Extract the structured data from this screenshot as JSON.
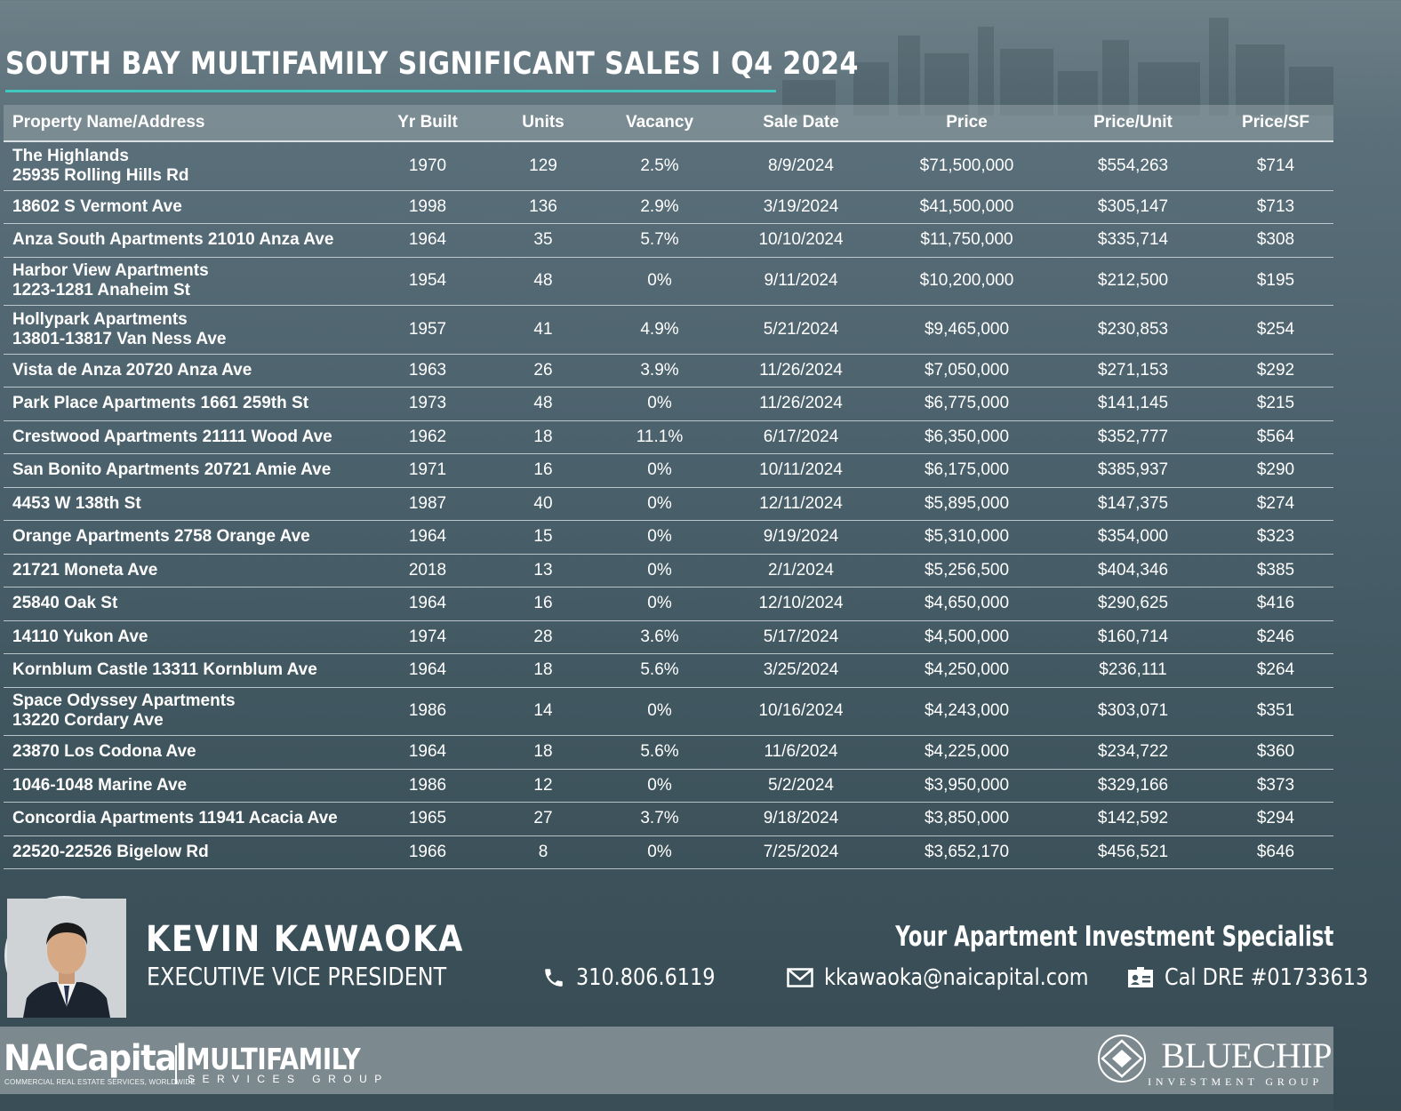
{
  "title": "SOUTH BAY MULTIFAMILY SIGNIFICANT SALES I Q4 2024",
  "table": {
    "columns": {
      "name": "Property Name/Address",
      "yr_built": "Yr Built",
      "units": "Units",
      "vacancy": "Vacancy",
      "sale_date": "Sale Date",
      "price": "Price",
      "price_unit": "Price/Unit",
      "price_sf": "Price/SF"
    },
    "rows": [
      {
        "name1": "The Highlands",
        "name2": "25935 Rolling Hills Rd",
        "yr": "1970",
        "units": "129",
        "vac": "2.5%",
        "date": "8/9/2024",
        "price": "$71,500,000",
        "ppu": "$554,263",
        "psf": "$714"
      },
      {
        "name1": "18602 S Vermont Ave",
        "yr": "1998",
        "units": "136",
        "vac": "2.9%",
        "date": "3/19/2024",
        "price": "$41,500,000",
        "ppu": "$305,147",
        "psf": "$713"
      },
      {
        "name1": "Anza South Apartments 21010 Anza Ave",
        "yr": "1964",
        "units": "35",
        "vac": "5.7%",
        "date": "10/10/2024",
        "price": "$11,750,000",
        "ppu": "$335,714",
        "psf": "$308"
      },
      {
        "name1": "Harbor View Apartments",
        "name2": "1223-1281 Anaheim St",
        "yr": "1954",
        "units": "48",
        "vac": "0%",
        "date": "9/11/2024",
        "price": "$10,200,000",
        "ppu": "$212,500",
        "psf": "$195"
      },
      {
        "name1": "Hollypark Apartments",
        "name2": "13801-13817 Van Ness Ave",
        "yr": "1957",
        "units": "41",
        "vac": "4.9%",
        "date": "5/21/2024",
        "price": "$9,465,000",
        "ppu": "$230,853",
        "psf": "$254"
      },
      {
        "name1": "Vista de Anza 20720 Anza Ave",
        "yr": "1963",
        "units": "26",
        "vac": "3.9%",
        "date": "11/26/2024",
        "price": "$7,050,000",
        "ppu": "$271,153",
        "psf": "$292"
      },
      {
        "name1": "Park Place Apartments 1661 259th St",
        "yr": "1973",
        "units": "48",
        "vac": "0%",
        "date": "11/26/2024",
        "price": "$6,775,000",
        "ppu": "$141,145",
        "psf": "$215"
      },
      {
        "name1": "Crestwood Apartments 21111 Wood Ave",
        "yr": "1962",
        "units": "18",
        "vac": "11.1%",
        "date": "6/17/2024",
        "price": "$6,350,000",
        "ppu": "$352,777",
        "psf": "$564"
      },
      {
        "name1": "San Bonito Apartments 20721 Amie Ave",
        "yr": "1971",
        "units": "16",
        "vac": "0%",
        "date": "10/11/2024",
        "price": "$6,175,000",
        "ppu": "$385,937",
        "psf": "$290"
      },
      {
        "name1": "4453 W 138th St",
        "yr": "1987",
        "units": "40",
        "vac": "0%",
        "date": "12/11/2024",
        "price": "$5,895,000",
        "ppu": "$147,375",
        "psf": "$274"
      },
      {
        "name1": "Orange Apartments 2758 Orange Ave",
        "yr": "1964",
        "units": "15",
        "vac": "0%",
        "date": "9/19/2024",
        "price": "$5,310,000",
        "ppu": "$354,000",
        "psf": "$323"
      },
      {
        "name1": "21721 Moneta Ave",
        "yr": "2018",
        "units": "13",
        "vac": "0%",
        "date": "2/1/2024",
        "price": "$5,256,500",
        "ppu": "$404,346",
        "psf": "$385"
      },
      {
        "name1": "25840 Oak St",
        "yr": "1964",
        "units": "16",
        "vac": "0%",
        "date": "12/10/2024",
        "price": "$4,650,000",
        "ppu": "$290,625",
        "psf": "$416"
      },
      {
        "name1": "14110 Yukon Ave",
        "yr": "1974",
        "units": "28",
        "vac": "3.6%",
        "date": "5/17/2024",
        "price": "$4,500,000",
        "ppu": "$160,714",
        "psf": "$246"
      },
      {
        "name1": "Kornblum Castle 13311 Kornblum Ave",
        "yr": "1964",
        "units": "18",
        "vac": "5.6%",
        "date": "3/25/2024",
        "price": "$4,250,000",
        "ppu": "$236,111",
        "psf": "$264"
      },
      {
        "name1": "Space Odyssey Apartments",
        "name2": "13220 Cordary Ave",
        "yr": "1986",
        "units": "14",
        "vac": "0%",
        "date": "10/16/2024",
        "price": "$4,243,000",
        "ppu": "$303,071",
        "psf": "$351"
      },
      {
        "name1": "23870 Los Codona Ave",
        "yr": "1964",
        "units": "18",
        "vac": "5.6%",
        "date": "11/6/2024",
        "price": "$4,225,000",
        "ppu": "$234,722",
        "psf": "$360"
      },
      {
        "name1": "1046-1048 Marine Ave",
        "yr": "1986",
        "units": "12",
        "vac": "0%",
        "date": "5/2/2024",
        "price": "$3,950,000",
        "ppu": "$329,166",
        "psf": "$373"
      },
      {
        "name1": "Concordia Apartments 11941 Acacia Ave",
        "yr": "1965",
        "units": "27",
        "vac": "3.7%",
        "date": "9/18/2024",
        "price": "$3,850,000",
        "ppu": "$142,592",
        "psf": "$294"
      },
      {
        "name1": "22520-22526 Bigelow Rd",
        "yr": "1966",
        "units": "8",
        "vac": "0%",
        "date": "7/25/2024",
        "price": "$3,652,170",
        "ppu": "$456,521",
        "psf": "$646"
      }
    ]
  },
  "agent": {
    "name": "KEVIN KAWAOKA",
    "role": "EXECUTIVE VICE PRESIDENT",
    "tagline": "Your Apartment Investment Specialist",
    "phone": "310.806.6119",
    "email": "kkawaoka@naicapital.com",
    "license": "Cal DRE #01733613"
  },
  "footer": {
    "nai_logo": "NAICapital",
    "nai_sub": "COMMERCIAL REAL ESTATE SERVICES, WORLDWIDE",
    "mf_title": "MULTIFAMILY",
    "mf_sub": "SERVICES GROUP",
    "bc_title": "BLUECHIP",
    "bc_sub": "INVESTMENT GROUP"
  },
  "colors": {
    "accent_rule": "#3ec8c0",
    "footer_band": "#7c8a90"
  },
  "icons": [
    "phone-icon",
    "mail-icon",
    "id-card-icon",
    "bluechip-diamond-icon"
  ]
}
